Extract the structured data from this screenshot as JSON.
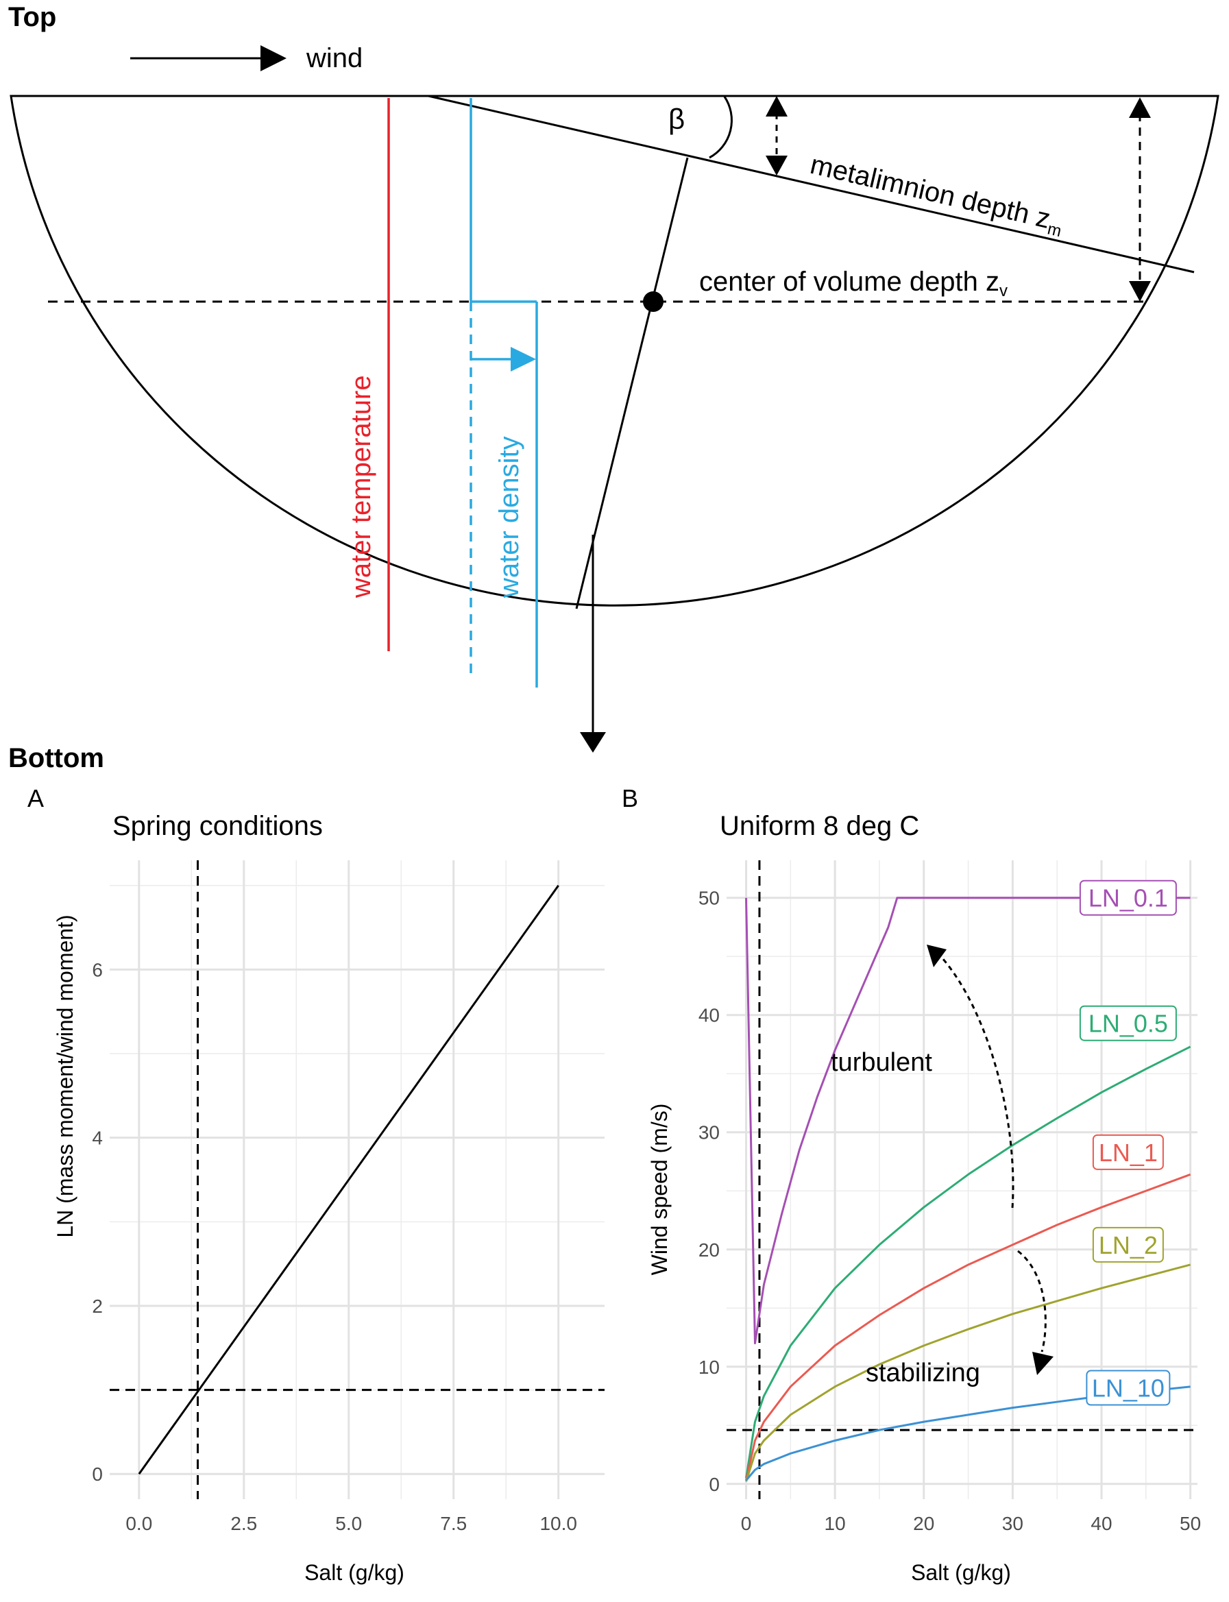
{
  "top": {
    "panel_title": "Top",
    "wind_label": "wind",
    "beta_label": "β",
    "metalimnion_label": "metalimnion depth z",
    "metalimnion_sub": "m",
    "center_label": "center of volume depth z",
    "center_sub": "v",
    "water_temperature_label": "water temperature",
    "water_density_label": "water density",
    "colors": {
      "temperature": "#e8212a",
      "density": "#29a9e1"
    }
  },
  "bottom": {
    "panel_title": "Bottom",
    "A": {
      "tag": "A",
      "title": "Spring conditions",
      "xlabel": "Salt (g/kg)",
      "ylabel": "LN (mass moment/wind moment)"
    },
    "B": {
      "tag": "B",
      "title": "Uniform 8 deg C",
      "xlabel": "Salt (g/kg)",
      "ylabel": "Wind speed (m/s)",
      "annotations": {
        "turbulent": "turbulent",
        "stabilizing": "stabilizing"
      }
    }
  },
  "chart_data": [
    {
      "type": "line",
      "panel": "A",
      "title": "Spring conditions",
      "xlabel": "Salt (g/kg)",
      "ylabel": "LN (mass moment/wind moment)",
      "xlim": [
        0,
        10
      ],
      "ylim": [
        0,
        7
      ],
      "xticks": [
        "0.0",
        "2.5",
        "5.0",
        "7.5",
        "10.0"
      ],
      "yticks": [
        "0",
        "2",
        "4",
        "6"
      ],
      "grid": true,
      "series": [
        {
          "x": [
            0,
            10
          ],
          "y": [
            0,
            7
          ],
          "color": "#000000"
        }
      ],
      "reference_lines": {
        "vertical_x": 1.4,
        "horizontal_y": 1
      }
    },
    {
      "type": "line",
      "panel": "B",
      "title": "Uniform 8 deg C",
      "xlabel": "Salt (g/kg)",
      "ylabel": "Wind speed (m/s)",
      "xlim": [
        0,
        50
      ],
      "ylim": [
        0,
        50
      ],
      "xticks": [
        "0",
        "10",
        "20",
        "30",
        "40",
        "50"
      ],
      "yticks": [
        "0",
        "10",
        "20",
        "30",
        "40",
        "50"
      ],
      "grid": true,
      "series": [
        {
          "name": "LN_0.1",
          "color": "#a54fb3",
          "x": [
            0,
            1,
            2,
            4,
            6,
            8,
            10,
            12,
            14,
            16,
            17,
            20,
            30,
            40,
            50
          ],
          "y": [
            50,
            12,
            17,
            23,
            28.5,
            33,
            37,
            40.5,
            44,
            47.5,
            50,
            50,
            50,
            50,
            50
          ]
        },
        {
          "name": "LN_0.5",
          "color": "#2dac74",
          "x": [
            0,
            1,
            2,
            5,
            10,
            15,
            20,
            25,
            30,
            35,
            40,
            45,
            50
          ],
          "y": [
            0.5,
            5.3,
            7.5,
            11.8,
            16.7,
            20.4,
            23.6,
            26.4,
            28.9,
            31.2,
            33.4,
            35.4,
            37.3
          ]
        },
        {
          "name": "LN_1",
          "color": "#ea5a51",
          "x": [
            0,
            1,
            2,
            5,
            10,
            15,
            20,
            25,
            30,
            35,
            40,
            45,
            50
          ],
          "y": [
            0.3,
            3.7,
            5.3,
            8.3,
            11.8,
            14.4,
            16.7,
            18.7,
            20.4,
            22.1,
            23.6,
            25,
            26.4
          ]
        },
        {
          "name": "LN_2",
          "color": "#a0a32d",
          "x": [
            0,
            1,
            2,
            5,
            10,
            15,
            20,
            25,
            30,
            35,
            40,
            45,
            50
          ],
          "y": [
            0.2,
            2.6,
            3.7,
            5.9,
            8.3,
            10.2,
            11.8,
            13.2,
            14.5,
            15.6,
            16.7,
            17.7,
            18.7
          ]
        },
        {
          "name": "LN_10",
          "color": "#3b91d4",
          "x": [
            0,
            1,
            2,
            5,
            10,
            15,
            20,
            25,
            30,
            35,
            40,
            45,
            50
          ],
          "y": [
            0.3,
            1.2,
            1.7,
            2.6,
            3.7,
            4.6,
            5.3,
            5.9,
            6.5,
            7,
            7.5,
            7.9,
            8.3
          ]
        }
      ],
      "reference_lines": {
        "vertical_x": 1.5,
        "horizontal_y": 4.6
      }
    }
  ]
}
